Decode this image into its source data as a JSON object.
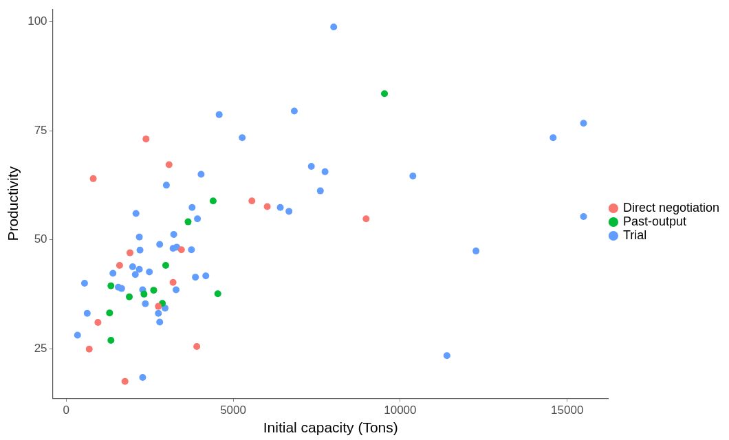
{
  "chart_data": {
    "type": "scatter",
    "xlabel": "Initial capacity (Tons)",
    "ylabel": "Productivity",
    "xlim": [
      -405,
      16240
    ],
    "xticks": [
      0,
      5000,
      10000,
      15000
    ],
    "ylim": [
      13.6,
      102.9
    ],
    "yticks": [
      25,
      50,
      75,
      100
    ],
    "grid": false,
    "legend": "right",
    "marker": "circle",
    "series": [
      {
        "name": "Direct negotiation",
        "color": "#f8766d",
        "x": [
          810,
          2390,
          3080,
          1910,
          1600,
          3450,
          3200,
          2760,
          950,
          690,
          1760,
          3910,
          5560,
          6020,
          8980
        ],
        "values": [
          64.0,
          73.1,
          67.2,
          47.0,
          44.1,
          47.7,
          40.2,
          34.7,
          31.0,
          24.9,
          17.5,
          25.5,
          58.9,
          57.6,
          54.8
        ]
      },
      {
        "name": "Past-output",
        "color": "#00ba38",
        "x": [
          9530,
          4400,
          3650,
          2980,
          1340,
          2620,
          2330,
          1890,
          4540,
          2880,
          1300,
          1340
        ],
        "values": [
          83.5,
          58.9,
          54.1,
          44.1,
          39.4,
          38.4,
          37.5,
          36.9,
          37.6,
          35.4,
          33.2,
          26.9
        ]
      },
      {
        "name": "Trial",
        "color": "#619cff",
        "x": [
          8010,
          6830,
          4580,
          5270,
          7340,
          7750,
          7610,
          10380,
          4040,
          3000,
          15490,
          14580,
          15490,
          12270,
          11400,
          6410,
          6670,
          3770,
          3930,
          2090,
          3220,
          2190,
          3310,
          3200,
          2800,
          2210,
          3750,
          1990,
          2190,
          2070,
          2490,
          1400,
          3870,
          4180,
          550,
          1560,
          1660,
          2290,
          3290,
          2370,
          2960,
          630,
          2760,
          2800,
          340,
          2290
        ],
        "values": [
          98.8,
          79.5,
          78.7,
          73.4,
          66.8,
          65.6,
          61.2,
          64.6,
          65.0,
          62.5,
          76.7,
          73.4,
          55.3,
          47.4,
          23.4,
          57.4,
          56.5,
          57.4,
          54.8,
          56.0,
          51.2,
          50.6,
          48.3,
          48.0,
          48.9,
          47.6,
          47.7,
          43.8,
          43.2,
          42.0,
          42.6,
          42.3,
          41.4,
          41.7,
          40.0,
          39.1,
          38.8,
          38.5,
          38.5,
          35.3,
          34.3,
          33.1,
          33.1,
          31.1,
          28.1,
          18.4
        ]
      }
    ]
  }
}
